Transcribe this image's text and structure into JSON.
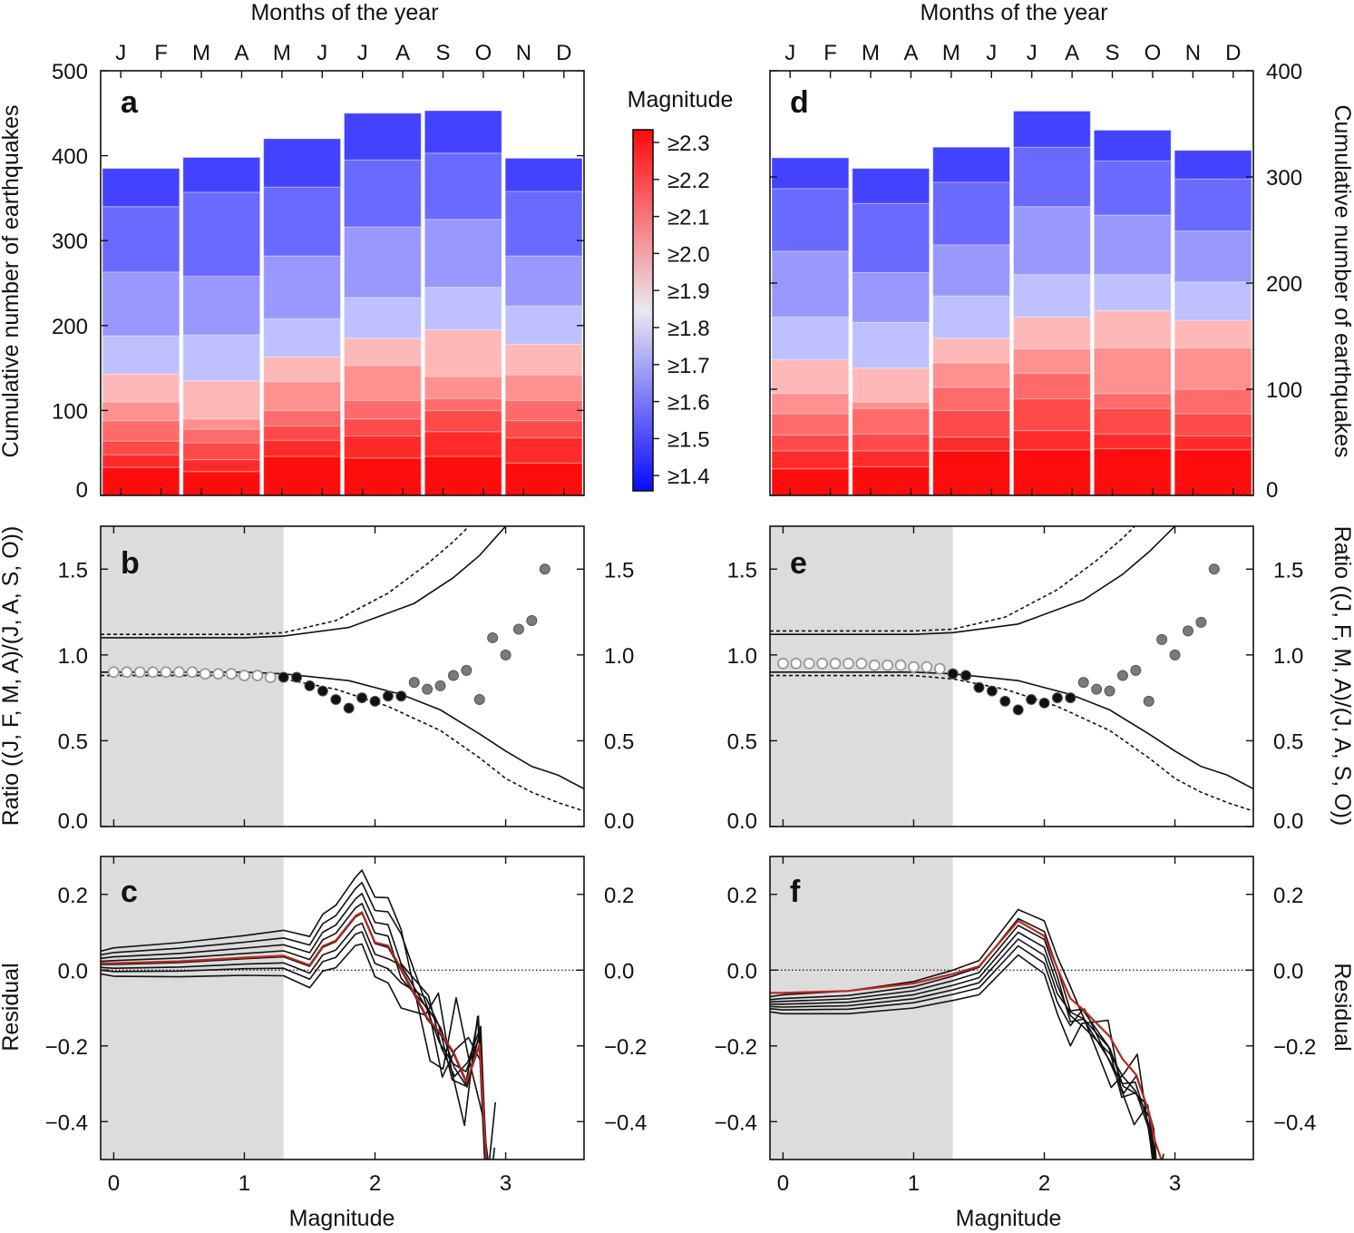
{
  "chart_data": [
    {
      "id": "a",
      "type": "bar",
      "panel_label": "a",
      "stacked": true,
      "top_xlabel": "Months of the year",
      "months": [
        "J",
        "F",
        "M",
        "A",
        "M",
        "J",
        "J",
        "A",
        "S",
        "O",
        "N",
        "D"
      ],
      "ylabel": "Cumulative number of earthquakes",
      "ylim": [
        0,
        500
      ],
      "yticks": [
        "0",
        "100",
        "200",
        "300",
        "400",
        "500"
      ],
      "bins": [
        "J F",
        "M A",
        "M J",
        "J A",
        "S O",
        "N D"
      ],
      "magnitude_thresholds": [
        1.4,
        1.5,
        1.6,
        1.7,
        1.8,
        1.9,
        2.0,
        2.1,
        2.2,
        2.3
      ],
      "cumulative_by_threshold": [
        [
          385,
          398,
          420,
          450,
          453,
          397
        ],
        [
          340,
          357,
          363,
          395,
          403,
          358
        ],
        [
          263,
          258,
          282,
          316,
          325,
          282
        ],
        [
          188,
          189,
          208,
          233,
          245,
          223
        ],
        [
          143,
          135,
          163,
          185,
          195,
          178
        ],
        [
          110,
          90,
          134,
          153,
          140,
          142
        ],
        [
          88,
          78,
          100,
          112,
          114,
          112
        ],
        [
          64,
          62,
          82,
          90,
          100,
          88
        ],
        [
          48,
          42,
          65,
          70,
          75,
          68
        ],
        [
          33,
          28,
          46,
          44,
          46,
          38
        ]
      ]
    },
    {
      "id": "d",
      "type": "bar",
      "panel_label": "d",
      "stacked": true,
      "top_xlabel": "Months of the year",
      "months": [
        "J",
        "F",
        "M",
        "A",
        "M",
        "J",
        "J",
        "A",
        "S",
        "O",
        "N",
        "D"
      ],
      "ylabel": "Cumulative number of earthquakes",
      "ylim": [
        0,
        400
      ],
      "yticks": [
        "0",
        "100",
        "200",
        "300",
        "400"
      ],
      "bins": [
        "J F",
        "M A",
        "M J",
        "J A",
        "S O",
        "N D"
      ],
      "magnitude_thresholds": [
        1.4,
        1.5,
        1.6,
        1.7,
        1.8,
        1.9,
        2.0,
        2.1,
        2.2,
        2.3
      ],
      "cumulative_by_threshold": [
        [
          318,
          308,
          328,
          362,
          344,
          325
        ],
        [
          289,
          275,
          295,
          328,
          315,
          298
        ],
        [
          230,
          210,
          236,
          272,
          264,
          249
        ],
        [
          168,
          163,
          188,
          208,
          208,
          201
        ],
        [
          128,
          120,
          148,
          168,
          174,
          165
        ],
        [
          96,
          88,
          125,
          138,
          139,
          139
        ],
        [
          77,
          82,
          102,
          115,
          96,
          100
        ],
        [
          57,
          58,
          80,
          91,
          82,
          77
        ],
        [
          42,
          42,
          55,
          61,
          58,
          56
        ],
        [
          25,
          27,
          42,
          43,
          44,
          43
        ]
      ]
    },
    {
      "id": "b",
      "type": "scatter",
      "panel_label": "b",
      "ylabel": "Ratio ((J, F, M, A)/(J, A, S, O))",
      "xlim": [
        -0.1,
        3.6
      ],
      "ylim": [
        0,
        1.75
      ],
      "yticks": [
        "0.0",
        "0.5",
        "1.0",
        "1.5"
      ],
      "shaded_region": [
        -0.1,
        1.3
      ],
      "points_open": {
        "x": [
          0,
          0.1,
          0.2,
          0.3,
          0.4,
          0.5,
          0.6,
          0.7,
          0.8,
          0.9,
          1.0,
          1.1,
          1.2
        ],
        "y": [
          0.9,
          0.9,
          0.9,
          0.9,
          0.9,
          0.9,
          0.9,
          0.89,
          0.89,
          0.89,
          0.88,
          0.88,
          0.87
        ]
      },
      "points_black": {
        "x": [
          1.3,
          1.4,
          1.5,
          1.6,
          1.7,
          1.8,
          1.9,
          2.0,
          2.1,
          2.2
        ],
        "y": [
          0.87,
          0.87,
          0.82,
          0.79,
          0.74,
          0.69,
          0.75,
          0.73,
          0.76,
          0.76
        ]
      },
      "points_gray": {
        "x": [
          2.3,
          2.4,
          2.5,
          2.6,
          2.7,
          2.8,
          2.9,
          3.0,
          3.1,
          3.2,
          3.3
        ],
        "y": [
          0.84,
          0.8,
          0.82,
          0.88,
          0.91,
          0.74,
          1.1,
          1.0,
          1.15,
          1.2,
          1.5
        ]
      },
      "curves": [
        {
          "style": "solid",
          "x": [
            -0.1,
            1.0,
            1.3,
            1.8,
            2.3,
            2.6,
            2.8,
            3.0,
            3.1
          ],
          "y": [
            1.1,
            1.1,
            1.11,
            1.16,
            1.3,
            1.45,
            1.58,
            1.75,
            1.85
          ]
        },
        {
          "style": "dashed",
          "x": [
            -0.1,
            1.0,
            1.3,
            1.7,
            2.1,
            2.4,
            2.6,
            2.72,
            2.85
          ],
          "y": [
            1.12,
            1.12,
            1.13,
            1.2,
            1.36,
            1.53,
            1.66,
            1.75,
            1.85
          ]
        },
        {
          "style": "solid",
          "x": [
            -0.1,
            1.0,
            1.3,
            1.8,
            2.2,
            2.5,
            2.8,
            3.0,
            3.2,
            3.4,
            3.6
          ],
          "y": [
            0.9,
            0.9,
            0.89,
            0.85,
            0.77,
            0.68,
            0.54,
            0.44,
            0.35,
            0.3,
            0.22
          ]
        },
        {
          "style": "dashed",
          "x": [
            -0.1,
            1.0,
            1.3,
            1.7,
            2.1,
            2.5,
            2.8,
            3.0,
            3.2,
            3.4,
            3.6
          ],
          "y": [
            0.88,
            0.88,
            0.86,
            0.8,
            0.7,
            0.56,
            0.4,
            0.28,
            0.2,
            0.14,
            0.09
          ]
        }
      ]
    },
    {
      "id": "e",
      "type": "scatter",
      "panel_label": "e",
      "ylabel": "Ratio ((J, F, M, A)/(J, A, S, O))",
      "xlim": [
        -0.1,
        3.6
      ],
      "ylim": [
        0,
        1.75
      ],
      "yticks": [
        "0.0",
        "0.5",
        "1.0",
        "1.5"
      ],
      "shaded_region": [
        -0.1,
        1.3
      ],
      "points_open": {
        "x": [
          0,
          0.1,
          0.2,
          0.3,
          0.4,
          0.5,
          0.6,
          0.7,
          0.8,
          0.9,
          1.0,
          1.1,
          1.2
        ],
        "y": [
          0.95,
          0.95,
          0.95,
          0.95,
          0.95,
          0.95,
          0.95,
          0.94,
          0.94,
          0.94,
          0.93,
          0.93,
          0.92
        ]
      },
      "points_black": {
        "x": [
          1.3,
          1.4,
          1.5,
          1.6,
          1.7,
          1.8,
          1.9,
          2.0,
          2.1,
          2.2
        ],
        "y": [
          0.89,
          0.88,
          0.81,
          0.79,
          0.73,
          0.68,
          0.74,
          0.72,
          0.75,
          0.75
        ]
      },
      "points_gray": {
        "x": [
          2.3,
          2.4,
          2.5,
          2.6,
          2.7,
          2.8,
          2.9,
          3.0,
          3.1,
          3.2,
          3.3
        ],
        "y": [
          0.84,
          0.8,
          0.79,
          0.88,
          0.91,
          0.73,
          1.09,
          1.0,
          1.14,
          1.19,
          1.5
        ]
      },
      "curves": [
        {
          "style": "solid",
          "x": [
            -0.1,
            1.0,
            1.3,
            1.8,
            2.3,
            2.6,
            2.8,
            3.0,
            3.1
          ],
          "y": [
            1.12,
            1.12,
            1.13,
            1.18,
            1.32,
            1.47,
            1.6,
            1.75,
            1.85
          ]
        },
        {
          "style": "dashed",
          "x": [
            -0.1,
            1.0,
            1.3,
            1.7,
            2.1,
            2.4,
            2.6,
            2.72,
            2.85
          ],
          "y": [
            1.14,
            1.14,
            1.15,
            1.22,
            1.38,
            1.55,
            1.68,
            1.77,
            1.85
          ]
        },
        {
          "style": "solid",
          "x": [
            -0.1,
            1.0,
            1.3,
            1.8,
            2.2,
            2.5,
            2.8,
            3.0,
            3.2,
            3.4,
            3.6
          ],
          "y": [
            0.9,
            0.9,
            0.89,
            0.85,
            0.77,
            0.68,
            0.54,
            0.44,
            0.35,
            0.3,
            0.22
          ]
        },
        {
          "style": "dashed",
          "x": [
            -0.1,
            1.0,
            1.3,
            1.7,
            2.1,
            2.5,
            2.8,
            3.0,
            3.2,
            3.4,
            3.6
          ],
          "y": [
            0.88,
            0.88,
            0.86,
            0.8,
            0.7,
            0.56,
            0.4,
            0.28,
            0.2,
            0.14,
            0.09
          ]
        }
      ]
    },
    {
      "id": "c",
      "type": "line",
      "panel_label": "c",
      "ylabel": "Residual",
      "xlabel": "Magnitude",
      "xlim": [
        -0.1,
        3.6
      ],
      "ylim": [
        -0.5,
        0.3
      ],
      "xticks": [
        "0",
        "1",
        "2",
        "3"
      ],
      "yticks": [
        "−0.4",
        "−0.2",
        "0.0",
        "0.2"
      ],
      "shaded_region": [
        -0.1,
        1.3
      ],
      "reference_line": 0,
      "x": [
        -0.1,
        0.0,
        0.5,
        1.0,
        1.3,
        1.5,
        1.6,
        1.7,
        1.85,
        1.9,
        2.0,
        2.1,
        2.2,
        2.4,
        2.5,
        2.6,
        2.7,
        2.8,
        2.85,
        2.9
      ],
      "mean_offsets": [
        0.015,
        0.015,
        0.02,
        0.03,
        0.035,
        0.01,
        0.06,
        0.075,
        0.14,
        0.15,
        0.07,
        0.06,
        0.0,
        -0.13,
        -0.17,
        -0.22,
        -0.3,
        -0.2,
        -0.5,
        -0.55
      ],
      "ensemble_offsets": [
        -0.025,
        -0.015,
        -0.008,
        0.0,
        0.008,
        0.016,
        0.025,
        0.035
      ],
      "highlight_color": "#b52a22",
      "highlight_offset": 0.003
    },
    {
      "id": "f",
      "type": "line",
      "panel_label": "f",
      "ylabel": "Residual",
      "xlabel": "Magnitude",
      "xlim": [
        -0.1,
        3.6
      ],
      "ylim": [
        -0.5,
        0.3
      ],
      "xticks": [
        "0",
        "1",
        "2",
        "3"
      ],
      "yticks": [
        "−0.4",
        "−0.2",
        "0.0",
        "0.2"
      ],
      "shaded_region": [
        -0.1,
        1.3
      ],
      "reference_line": 0,
      "x": [
        -0.1,
        0.0,
        0.5,
        1.0,
        1.3,
        1.5,
        1.6,
        1.7,
        1.8,
        1.9,
        2.0,
        2.1,
        2.2,
        2.3,
        2.5,
        2.6,
        2.7,
        2.8,
        2.85,
        2.9
      ],
      "mean_offsets": [
        -0.09,
        -0.09,
        -0.085,
        -0.065,
        -0.04,
        -0.02,
        0.02,
        0.06,
        0.1,
        0.08,
        0.06,
        -0.04,
        -0.12,
        -0.15,
        -0.22,
        -0.28,
        -0.32,
        -0.42,
        -0.5,
        -0.55
      ],
      "ensemble_offsets": [
        -0.02,
        -0.012,
        -0.006,
        0.0,
        0.006,
        0.012,
        0.02
      ],
      "highlight_color": "#b52a22",
      "highlight_offset": 0.03
    }
  ],
  "colorbar": {
    "title": "Magnitude",
    "labels": [
      "≥2.3",
      "≥2.2",
      "≥2.1",
      "≥2.0",
      "≥1.9",
      "≥1.8",
      "≥1.7",
      "≥1.6",
      "≥1.5",
      "≥1.4"
    ]
  }
}
